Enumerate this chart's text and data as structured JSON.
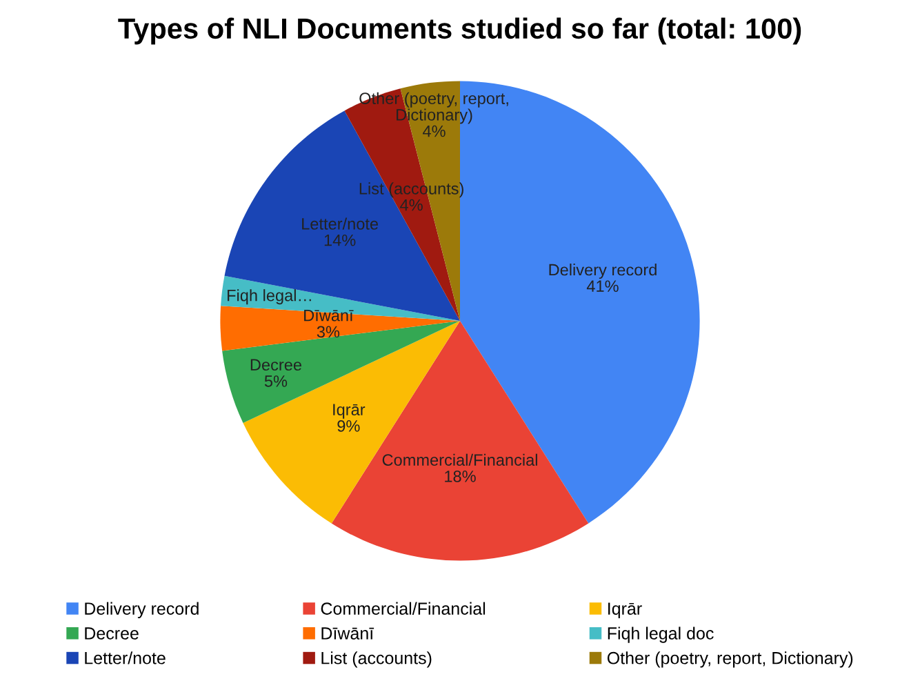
{
  "chart_data": {
    "type": "pie",
    "title": "Types of NLI Documents studied so far (total: 100)",
    "categories": [
      "Delivery record",
      "Commercial/Financial",
      "Iqrār",
      "Decree",
      "Dīwānī",
      "Fiqh legal doc",
      "Letter/note",
      "List (accounts)",
      "Other (poetry, report, Dictionary)"
    ],
    "values": [
      41,
      18,
      9,
      5,
      3,
      2,
      14,
      4,
      4
    ],
    "colors": [
      "#4285f4",
      "#ea4335",
      "#fbbc04",
      "#34a853",
      "#ff6d01",
      "#46bdc6",
      "#1a45b5",
      "#a01a10",
      "#9c7a0a"
    ],
    "value_labels": [
      "Delivery record\n41%",
      "Commercial/Financial\n18%",
      "Iqrār\n9%",
      "Decree\n5%",
      "Dīwānī\n3%",
      "Fiqh legal…",
      "Letter/note\n14%",
      "List (accounts)\n4%",
      "Other (poetry, report,\nDictionary)\n4%"
    ],
    "legend": "bottom"
  }
}
